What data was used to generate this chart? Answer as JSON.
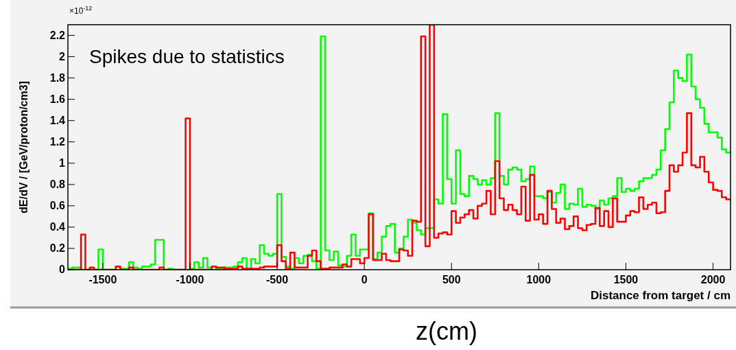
{
  "chart_data": {
    "type": "histogram",
    "xlabel": "Distance from target / cm",
    "ylabel": "dE/dV / [GeV/proton/cm3]",
    "annotations": [
      "×10$^{-12}$",
      "Spikes due to statistics",
      "z(cm)"
    ],
    "bins": [
      -1700,
      -1675,
      -1650,
      -1625,
      -1600,
      -1575,
      -1550,
      -1525,
      -1500,
      -1475,
      -1450,
      -1425,
      -1400,
      -1375,
      -1350,
      -1325,
      -1300,
      -1275,
      -1250,
      -1225,
      -1200,
      -1175,
      -1150,
      -1125,
      -1100,
      -1075,
      -1050,
      -1025,
      -1000,
      -975,
      -950,
      -925,
      -900,
      -875,
      -850,
      -825,
      -800,
      -775,
      -750,
      -725,
      -700,
      -675,
      -650,
      -625,
      -600,
      -575,
      -550,
      -525,
      -500,
      -475,
      -450,
      -425,
      -400,
      -375,
      -350,
      -325,
      -300,
      -275,
      -250,
      -225,
      -200,
      -175,
      -150,
      -125,
      -100,
      -75,
      -50,
      -25,
      0,
      25,
      50,
      75,
      100,
      125,
      150,
      175,
      200,
      225,
      250,
      275,
      300,
      325,
      350,
      375,
      400,
      425,
      450,
      475,
      500,
      525,
      550,
      575,
      600,
      625,
      650,
      675,
      700,
      725,
      750,
      775,
      800,
      825,
      850,
      875,
      900,
      925,
      950,
      975,
      1000,
      1025,
      1050,
      1075,
      1100,
      1125,
      1150,
      1175,
      1200,
      1225,
      1250,
      1275,
      1300,
      1325,
      1350,
      1375,
      1400,
      1425,
      1450,
      1475,
      1500,
      1525,
      1550,
      1575,
      1600,
      1625,
      1650,
      1675,
      1700,
      1725,
      1750,
      1775,
      1800,
      1825,
      1850,
      1875,
      1900,
      1925,
      1950,
      1975,
      2000,
      2025,
      2050,
      2075,
      2100
    ],
    "series": [
      {
        "color": "#00ff00",
        "values": [
          0.01,
          0.02,
          0.02,
          0,
          0,
          0,
          0,
          0.19,
          0,
          0,
          0,
          0.03,
          0.01,
          0.01,
          0.07,
          0.02,
          0.01,
          0.03,
          0.03,
          0.05,
          0.28,
          0.28,
          0,
          0.01,
          0,
          0,
          0,
          0,
          0.01,
          0.07,
          0.02,
          0.11,
          0.02,
          0,
          0.01,
          0.01,
          0.02,
          0.02,
          0.03,
          0.07,
          0.11,
          0.01,
          0.1,
          0.06,
          0.23,
          0.15,
          0.13,
          0.15,
          0.71,
          0.12,
          0.03,
          0.01,
          0.11,
          0.06,
          0.13,
          0.14,
          0.08,
          0.01,
          2.19,
          0.18,
          0.09,
          0.17,
          0.04,
          0.03,
          0.13,
          0.33,
          0.13,
          0.19,
          0.19,
          0.53,
          0.1,
          0.16,
          0.31,
          0.41,
          0.43,
          0.16,
          0.2,
          0.31,
          0.47,
          0.44,
          0.37,
          0.33,
          0.39,
          0.39,
          0.66,
          0.62,
          1.46,
          0.85,
          0.62,
          1.12,
          0.71,
          0.69,
          0.88,
          0.85,
          0.8,
          0.84,
          0.8,
          0.86,
          1.47,
          0.88,
          0.8,
          0.94,
          0.96,
          0.94,
          0.83,
          0.85,
          0.97,
          0.69,
          0.69,
          0.67,
          0.73,
          0.63,
          0.72,
          0.8,
          0.57,
          0.62,
          0.61,
          0.76,
          0.59,
          0.61,
          0.6,
          0.57,
          0.65,
          0.61,
          0.67,
          0.69,
          0.86,
          0.73,
          0.76,
          0.74,
          0.76,
          0.83,
          0.86,
          0.86,
          0.89,
          0.94,
          1.12,
          1.32,
          1.57,
          1.87,
          1.8,
          1.77,
          2.02,
          1.72,
          1.6,
          1.52,
          1.37,
          1.29,
          1.29,
          1.24,
          1.13,
          1.1
        ]
      },
      {
        "color": "#ff0000",
        "values": [
          0,
          0,
          0,
          0.33,
          0,
          0.02,
          0,
          0,
          0,
          0,
          0,
          0.03,
          0,
          0,
          0.02,
          0,
          0,
          0,
          0,
          0,
          0,
          0.02,
          0,
          0,
          0,
          0,
          0,
          1.42,
          0,
          0,
          0,
          0,
          0,
          0.03,
          0.02,
          0.02,
          0.01,
          0.01,
          0.01,
          0.03,
          0.01,
          0.01,
          0.01,
          0.01,
          0.02,
          0.03,
          0.03,
          0.03,
          0.23,
          0.08,
          0.01,
          0.16,
          0.02,
          0.02,
          0.02,
          0.13,
          0.18,
          0.08,
          0.01,
          0.01,
          0.02,
          0.02,
          0.02,
          0.05,
          0.03,
          0.1,
          0.1,
          0.06,
          0.11,
          0.52,
          0.09,
          0.09,
          0.15,
          0.09,
          0.08,
          0.08,
          0.19,
          0.18,
          0.13,
          0.46,
          0.45,
          2.19,
          0.22,
          2.3,
          0.3,
          0.34,
          0.35,
          0.33,
          0.55,
          0.44,
          0.49,
          0.52,
          0.56,
          0.48,
          0.6,
          0.62,
          0.74,
          0.52,
          1.02,
          0.67,
          0.56,
          0.61,
          0.56,
          0.52,
          0.78,
          0.46,
          0.89,
          0.47,
          0.52,
          0.43,
          0.74,
          0.57,
          0.44,
          0.48,
          0.38,
          0.41,
          0.5,
          0.39,
          0.37,
          0.42,
          0.43,
          0.58,
          0.41,
          0.55,
          0.4,
          0.67,
          0.45,
          0.45,
          0.51,
          0.55,
          0.54,
          0.68,
          0.57,
          0.61,
          0.63,
          0.53,
          0.54,
          0.74,
          0.98,
          0.92,
          0.98,
          1.1,
          1.47,
          0.98,
          0.96,
          1.06,
          0.92,
          0.82,
          0.75,
          0.74,
          0.68,
          0.66
        ]
      }
    ],
    "xlim": [
      -1700,
      2100
    ],
    "xticks": [
      -1500,
      -1000,
      -500,
      0,
      500,
      1000,
      1500,
      2000
    ],
    "ylim": [
      0,
      2.3
    ],
    "yticks": [
      0,
      0.2,
      0.4,
      0.6,
      0.8,
      1,
      1.2,
      1.4,
      1.6,
      1.8,
      2,
      2.2
    ],
    "grid": false
  }
}
